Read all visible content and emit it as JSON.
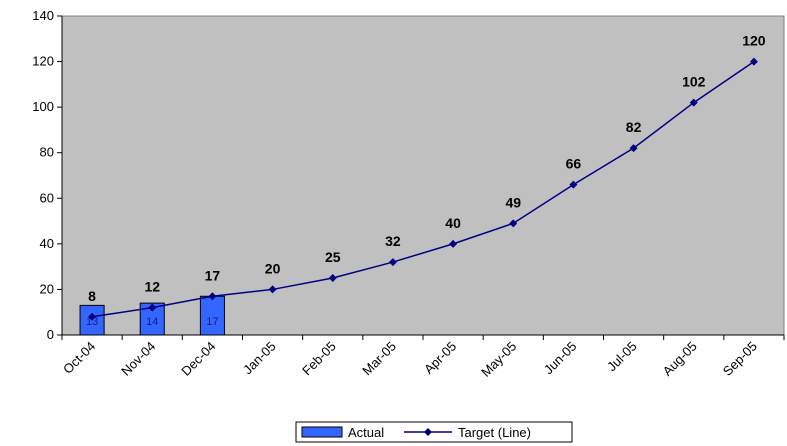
{
  "chart_data": {
    "type": "bar",
    "categories": [
      "Oct-04",
      "Nov-04",
      "Dec-04",
      "Jan-05",
      "Feb-05",
      "Mar-05",
      "Apr-05",
      "May-05",
      "Jun-05",
      "Jul-05",
      "Aug-05",
      "Sep-05"
    ],
    "series": [
      {
        "name": "Actual",
        "type": "bar",
        "values": [
          13,
          14,
          17,
          null,
          null,
          null,
          null,
          null,
          null,
          null,
          null,
          null
        ],
        "color": "#3366ff"
      },
      {
        "name": "Target (Line)",
        "type": "line",
        "values": [
          8,
          12,
          17,
          20,
          25,
          32,
          40,
          49,
          66,
          82,
          102,
          120
        ],
        "color": "#000080"
      }
    ],
    "ylim": [
      0,
      140
    ],
    "yticks": [
      0,
      20,
      40,
      60,
      80,
      100,
      120,
      140
    ],
    "grid": false,
    "plot_background": "#c0c0c0",
    "legend_position": "bottom",
    "title": "",
    "xlabel": "",
    "ylabel": ""
  }
}
